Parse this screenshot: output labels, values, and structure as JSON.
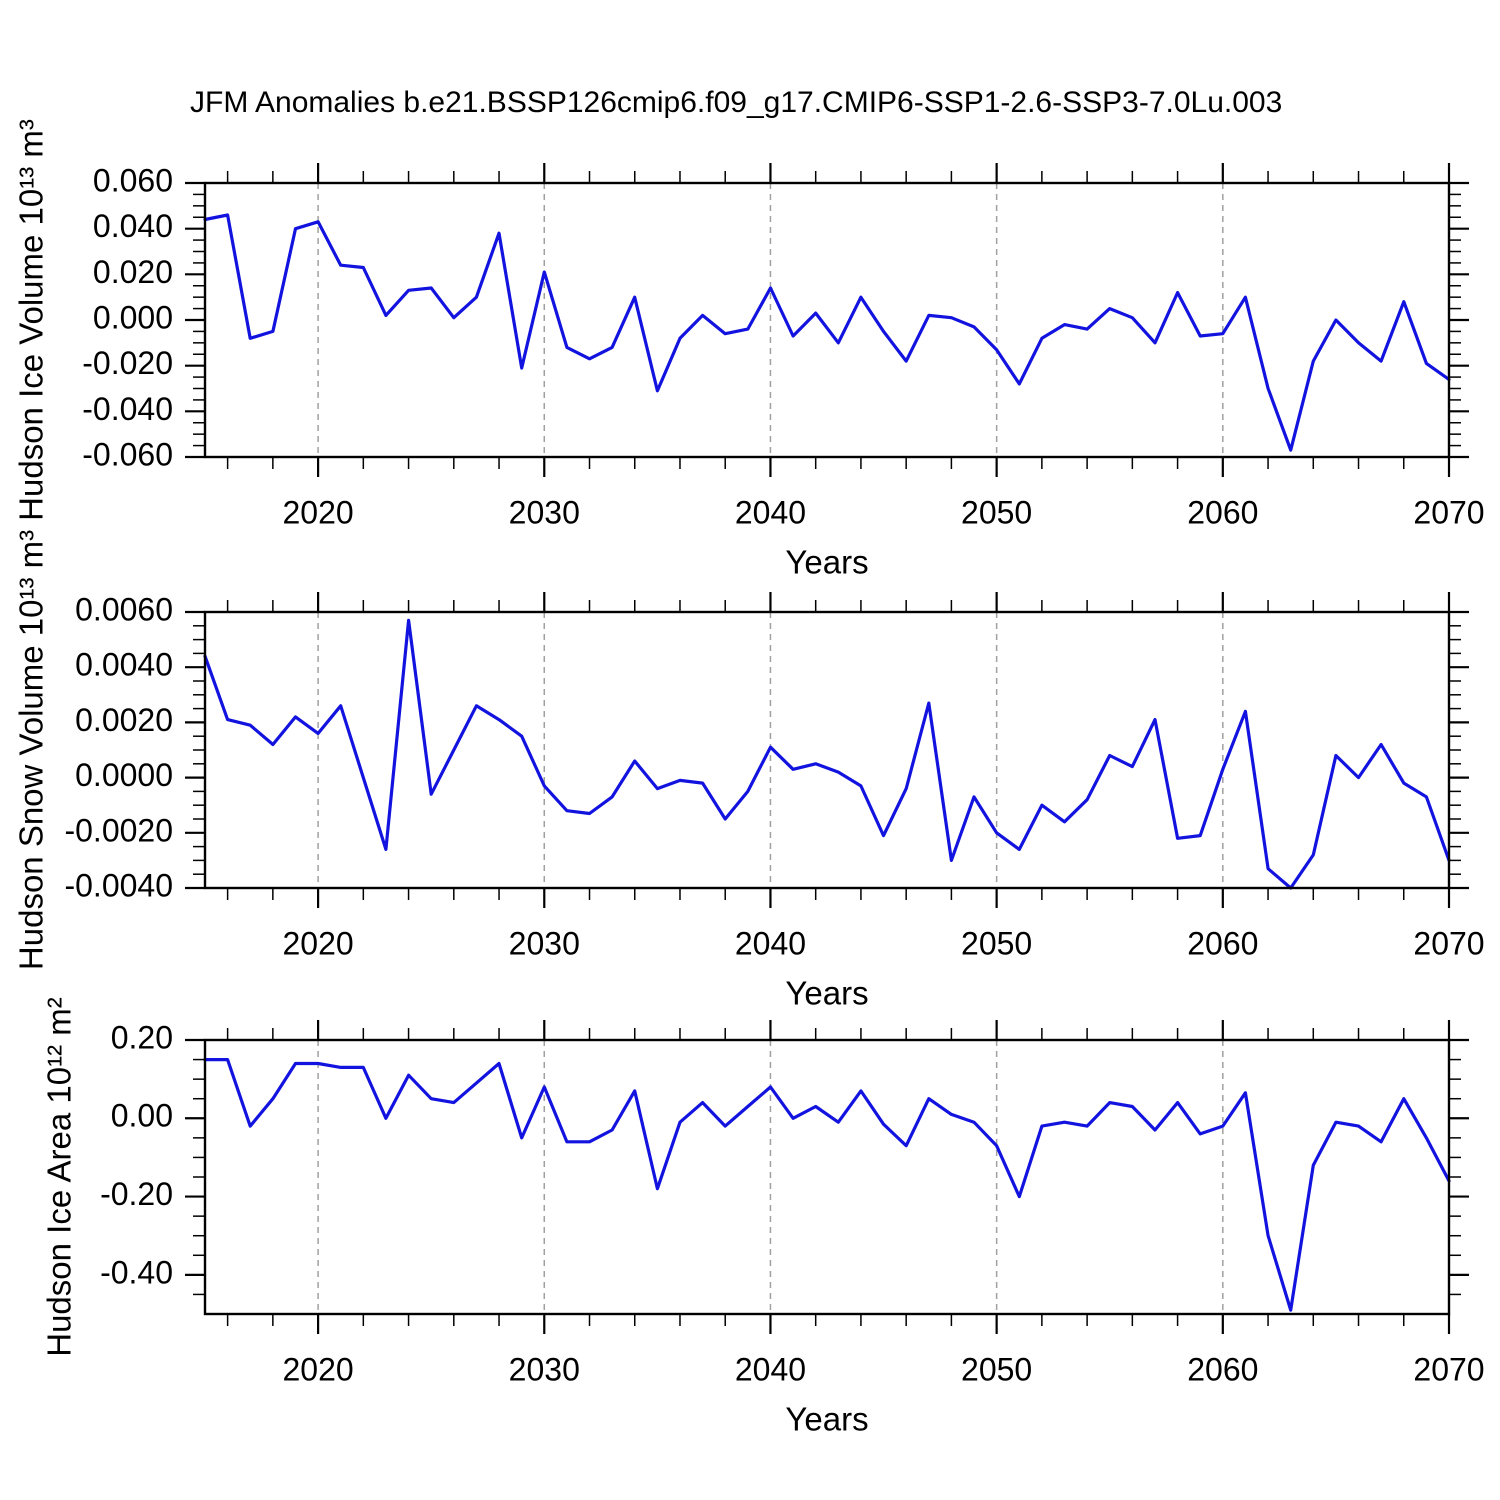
{
  "title": "JFM Anomalies b.e21.BSSP126cmip6.f09_g17.CMIP6-SSP1-2.6-SSP3-7.0Lu.003",
  "colors": {
    "line": "#1313E0",
    "axis": "#000000",
    "grid": "#A0A0A0",
    "background": "#FFFFFF"
  },
  "chart_data": {
    "type": "line",
    "x_label": "Years",
    "x_range": [
      2015,
      2070
    ],
    "x_major_ticks": [
      2020,
      2030,
      2040,
      2050,
      2060,
      2070
    ],
    "x_minor_step": 2,
    "grid_x": [
      2020,
      2030,
      2040,
      2050,
      2060
    ],
    "legend": "none",
    "years": [
      2015,
      2016,
      2017,
      2018,
      2019,
      2020,
      2021,
      2022,
      2023,
      2024,
      2025,
      2026,
      2027,
      2028,
      2029,
      2030,
      2031,
      2032,
      2033,
      2034,
      2035,
      2036,
      2037,
      2038,
      2039,
      2040,
      2041,
      2042,
      2043,
      2044,
      2045,
      2046,
      2047,
      2048,
      2049,
      2050,
      2051,
      2052,
      2053,
      2054,
      2055,
      2056,
      2057,
      2058,
      2059,
      2060,
      2061,
      2062,
      2063,
      2064,
      2065,
      2066,
      2067,
      2068,
      2069,
      2070
    ],
    "panels": [
      {
        "id": "hudson-ice-volume",
        "ylabel": "Hudson Ice Volume 10¹³ m³",
        "ylim": [
          -0.06,
          0.06
        ],
        "ytick_values": [
          0.06,
          0.04,
          0.02,
          0.0,
          -0.02,
          -0.04,
          -0.06
        ],
        "ytick_labels": [
          "0.060",
          "0.040",
          "0.020",
          "0.000",
          "-0.020",
          "-0.040",
          "-0.060"
        ],
        "yminor": 0.005,
        "values": [
          0.044,
          0.046,
          -0.008,
          -0.005,
          0.04,
          0.043,
          0.024,
          0.023,
          0.002,
          0.013,
          0.014,
          0.001,
          0.01,
          0.038,
          -0.021,
          0.021,
          -0.012,
          -0.017,
          -0.012,
          0.01,
          -0.031,
          -0.008,
          0.002,
          -0.006,
          -0.004,
          0.014,
          -0.007,
          0.003,
          -0.01,
          0.01,
          -0.005,
          -0.018,
          0.002,
          0.001,
          -0.003,
          -0.013,
          -0.028,
          -0.008,
          -0.002,
          -0.004,
          0.005,
          0.001,
          -0.01,
          0.012,
          -0.007,
          -0.006,
          0.01,
          -0.03,
          -0.057,
          -0.018,
          0.0,
          -0.01,
          -0.018,
          0.008,
          -0.019,
          -0.026
        ]
      },
      {
        "id": "hudson-snow-volume",
        "ylabel": "Hudson Snow Volume 10¹³ m³",
        "ylim": [
          -0.004,
          0.006
        ],
        "ytick_values": [
          0.006,
          0.004,
          0.002,
          0.0,
          -0.002,
          -0.004
        ],
        "ytick_labels": [
          "0.0060",
          "0.0040",
          "0.0020",
          "0.0000",
          "-0.0020",
          "-0.0040"
        ],
        "yminor": 0.0005,
        "values": [
          0.0044,
          0.0021,
          0.0019,
          0.0012,
          0.0022,
          0.0016,
          0.0026,
          0.0,
          -0.0026,
          0.0057,
          -0.0006,
          0.001,
          0.0026,
          0.0021,
          0.0015,
          -0.0003,
          -0.0012,
          -0.0013,
          -0.0007,
          0.0006,
          -0.0004,
          -0.0001,
          -0.0002,
          -0.0015,
          -0.0005,
          0.0011,
          0.0003,
          0.0005,
          0.0002,
          -0.0003,
          -0.0021,
          -0.0004,
          0.0027,
          -0.003,
          -0.0007,
          -0.002,
          -0.0026,
          -0.001,
          -0.0016,
          -0.0008,
          0.0008,
          0.0004,
          0.0021,
          -0.0022,
          -0.0021,
          0.0003,
          0.0024,
          -0.0033,
          -0.004,
          -0.0028,
          0.0008,
          0.0,
          0.0012,
          -0.0002,
          -0.0007,
          -0.003
        ]
      },
      {
        "id": "hudson-ice-area",
        "ylabel": "Hudson Ice Area 10¹² m²",
        "ylim": [
          -0.5,
          0.2
        ],
        "ytick_values": [
          0.2,
          0.0,
          -0.2,
          -0.4
        ],
        "ytick_labels": [
          "0.20",
          "0.00",
          "-0.20",
          "-0.40"
        ],
        "yminor": 0.05,
        "values": [
          0.15,
          0.15,
          -0.02,
          0.05,
          0.14,
          0.14,
          0.13,
          0.13,
          0.0,
          0.11,
          0.05,
          0.04,
          0.09,
          0.14,
          -0.05,
          0.08,
          -0.06,
          -0.06,
          -0.03,
          0.07,
          -0.18,
          -0.01,
          0.04,
          -0.02,
          0.03,
          0.08,
          0.0,
          0.03,
          -0.01,
          0.07,
          -0.015,
          -0.07,
          0.05,
          0.01,
          -0.01,
          -0.07,
          -0.2,
          -0.02,
          -0.01,
          -0.02,
          0.04,
          0.03,
          -0.03,
          0.04,
          -0.04,
          -0.02,
          0.065,
          -0.3,
          -0.49,
          -0.12,
          -0.01,
          -0.02,
          -0.06,
          0.05,
          -0.05,
          -0.16
        ]
      }
    ]
  }
}
